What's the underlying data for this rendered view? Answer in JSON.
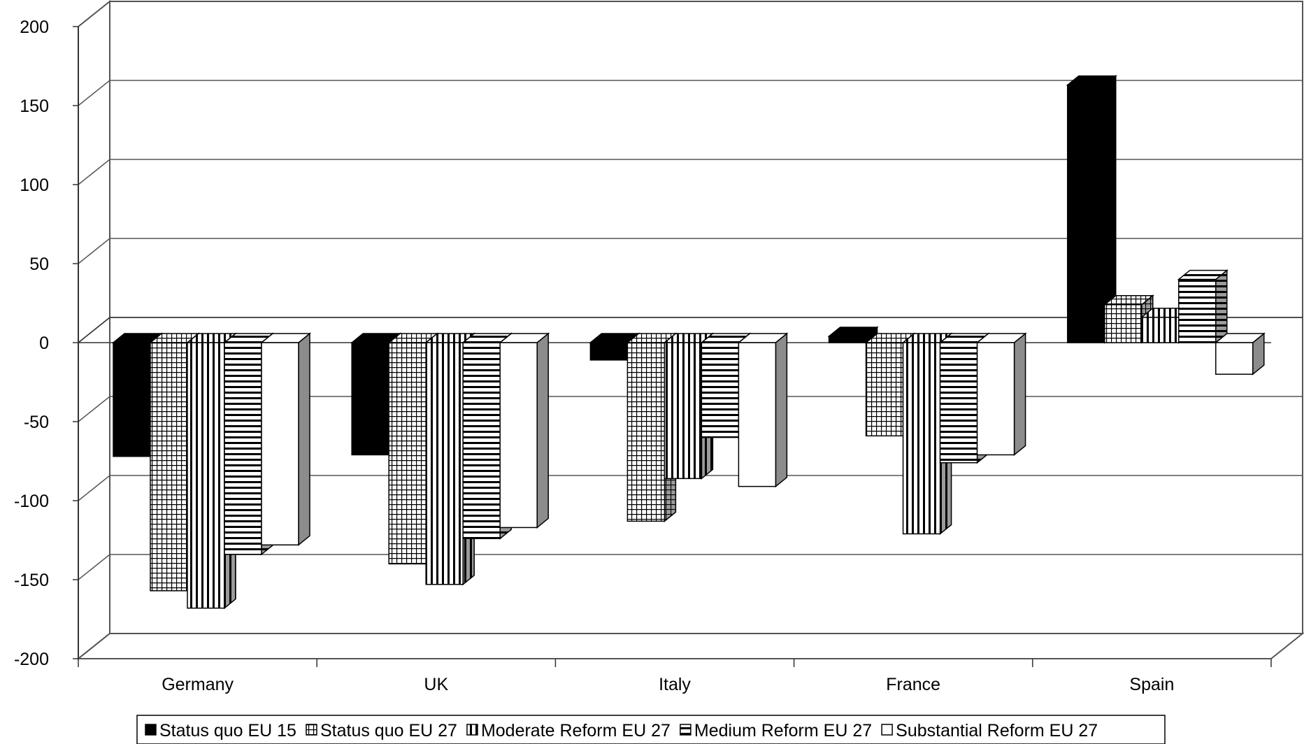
{
  "chart_data": {
    "type": "bar",
    "title": "",
    "xlabel": "",
    "ylabel": "",
    "categories": [
      "Germany",
      "UK",
      "Italy",
      "France",
      "Spain"
    ],
    "ylim": [
      -200,
      200
    ],
    "yticks": [
      200,
      150,
      100,
      50,
      0,
      -50,
      -100,
      -150,
      -200
    ],
    "grid": true,
    "three_d": true,
    "legend_position": "bottom",
    "series": [
      {
        "name": "Status quo EU 15",
        "pattern": "solid-black",
        "values": [
          -72,
          -71,
          -11,
          4,
          163
        ]
      },
      {
        "name": "Status quo EU 27",
        "pattern": "grid",
        "values": [
          -157,
          -140,
          -113,
          -59,
          24
        ]
      },
      {
        "name": "Moderate Reform EU 27",
        "pattern": "vertical-lines",
        "values": [
          -168,
          -153,
          -86,
          -121,
          16
        ]
      },
      {
        "name": "Medium Reform EU 27",
        "pattern": "horizontal-lines",
        "values": [
          -134,
          -124,
          -60,
          -76,
          40
        ]
      },
      {
        "name": "Substantial Reform EU 27",
        "pattern": "white",
        "values": [
          -128,
          -117,
          -91,
          -71,
          -20
        ]
      }
    ]
  }
}
